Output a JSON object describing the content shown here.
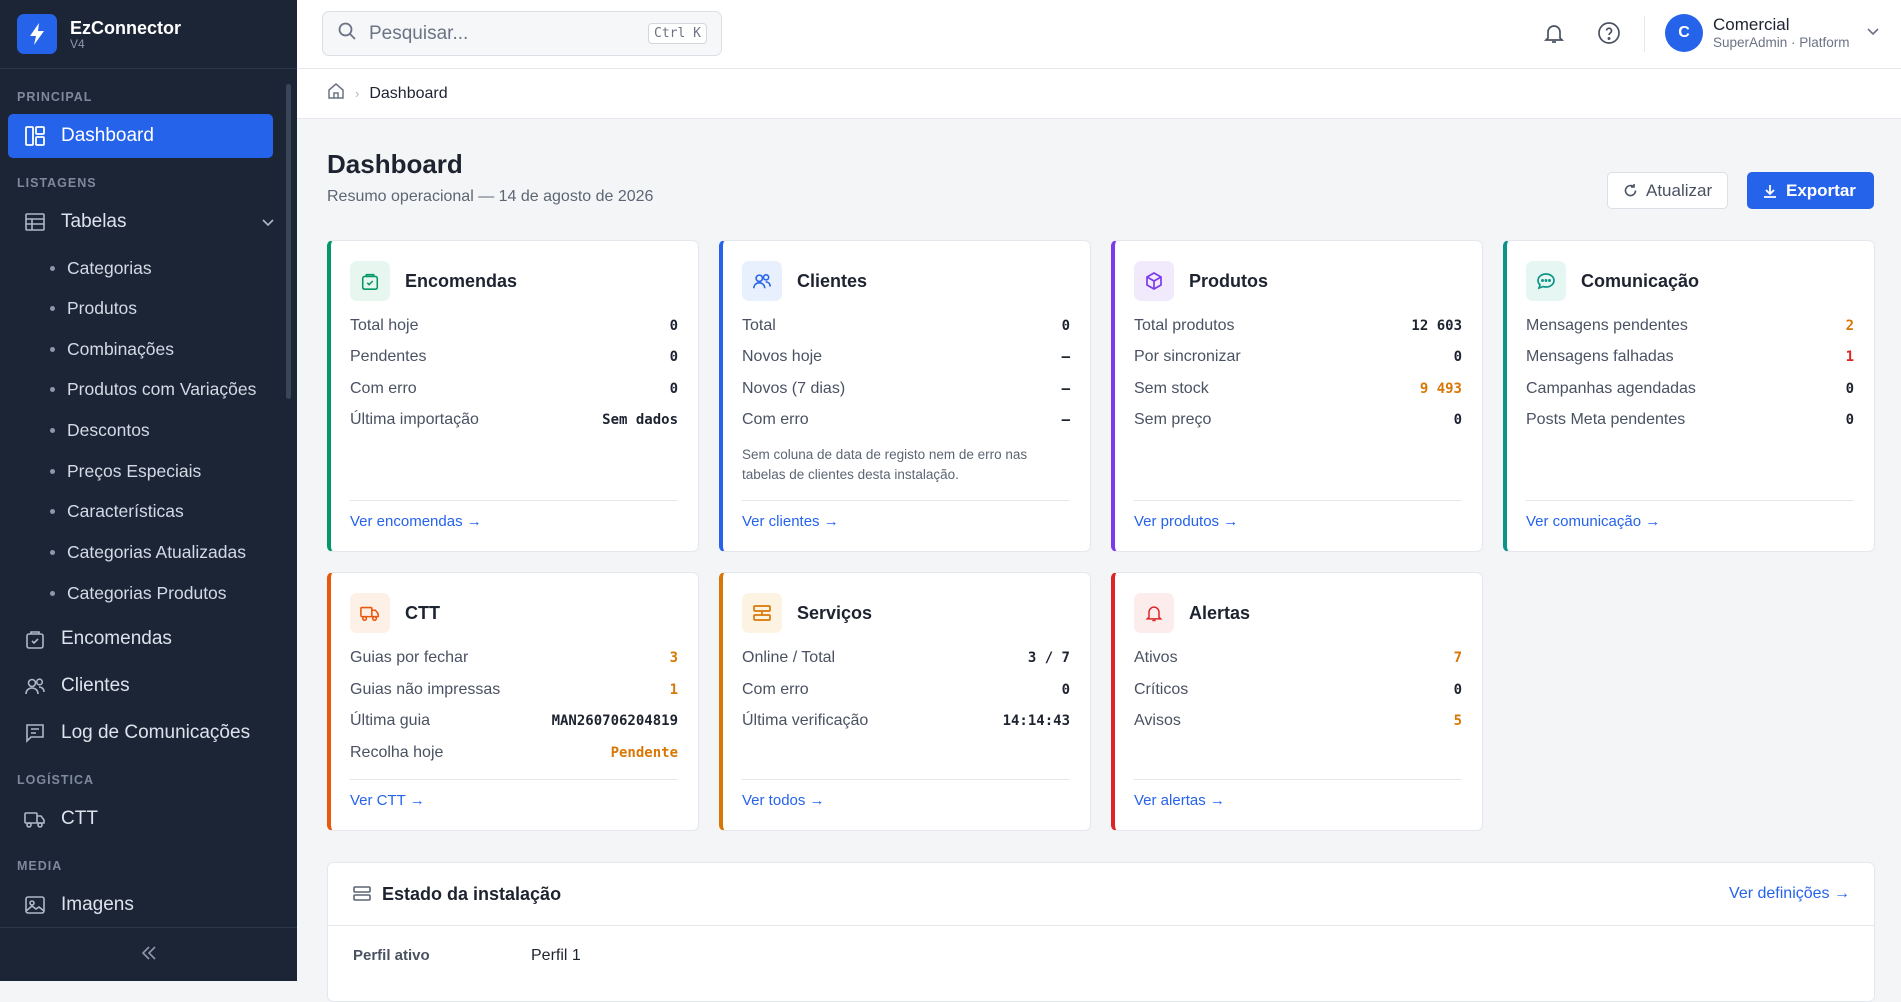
{
  "app": {
    "name": "EzConnector",
    "version": "V4"
  },
  "sidebar": {
    "sections": {
      "principal": "PRINCIPAL",
      "listagens": "LISTAGENS",
      "logistica": "LOGÍSTICA",
      "media": "MEDIA"
    },
    "dashboard": "Dashboard",
    "tabelas": "Tabelas",
    "sub": [
      "Categorias",
      "Produtos",
      "Combinações",
      "Produtos com Variações",
      "Descontos",
      "Preços Especiais",
      "Características",
      "Categorias Atualizadas",
      "Categorias Produtos"
    ],
    "encomendas": "Encomendas",
    "clientes": "Clientes",
    "log": "Log de Comunicações",
    "ctt": "CTT",
    "imagens": "Imagens"
  },
  "search": {
    "placeholder": "Pesquisar...",
    "shortcut": "Ctrl K"
  },
  "user": {
    "initial": "C",
    "name": "Comercial",
    "role": "SuperAdmin · Platform"
  },
  "breadcrumb": {
    "current": "Dashboard"
  },
  "page": {
    "title": "Dashboard",
    "subtitle": "Resumo operacional — 14 de agosto de 2026",
    "refresh": "Atualizar",
    "export": "Exportar"
  },
  "cards": {
    "encomendas": {
      "title": "Encomendas",
      "rows": [
        [
          "Total hoje",
          "0"
        ],
        [
          "Pendentes",
          "0"
        ],
        [
          "Com erro",
          "0"
        ],
        [
          "Última importação",
          "Sem dados"
        ]
      ],
      "link": "Ver encomendas →"
    },
    "clientes": {
      "title": "Clientes",
      "rows": [
        [
          "Total",
          "0"
        ],
        [
          "Novos hoje",
          "–"
        ],
        [
          "Novos (7 dias)",
          "–"
        ],
        [
          "Com erro",
          "–"
        ]
      ],
      "note": "Sem coluna de data de registo nem de erro nas tabelas de clientes desta instalação.",
      "link": "Ver clientes →"
    },
    "produtos": {
      "title": "Produtos",
      "rows": [
        [
          "Total produtos",
          "12 603"
        ],
        [
          "Por sincronizar",
          "0"
        ],
        [
          "Sem stock",
          "9 493"
        ],
        [
          "Sem preço",
          "0"
        ]
      ],
      "link": "Ver produtos →"
    },
    "comunicacao": {
      "title": "Comunicação",
      "rows": [
        [
          "Mensagens pendentes",
          "2"
        ],
        [
          "Mensagens falhadas",
          "1"
        ],
        [
          "Campanhas agendadas",
          "0"
        ],
        [
          "Posts Meta pendentes",
          "0"
        ]
      ],
      "link": "Ver comunicação →"
    },
    "ctt": {
      "title": "CTT",
      "rows": [
        [
          "Guias por fechar",
          "3"
        ],
        [
          "Guias não impressas",
          "1"
        ],
        [
          "Última guia",
          "MAN260706204819"
        ],
        [
          "Recolha hoje",
          "Pendente"
        ]
      ],
      "link": "Ver CTT →"
    },
    "servicos": {
      "title": "Serviços",
      "rows": [
        [
          "Online / Total",
          "3 / 7"
        ],
        [
          "Com erro",
          "0"
        ],
        [
          "Última verificação",
          "14:14:43"
        ]
      ],
      "link": "Ver todos →"
    },
    "alertas": {
      "title": "Alertas",
      "rows": [
        [
          "Ativos",
          "7"
        ],
        [
          "Críticos",
          "0"
        ],
        [
          "Avisos",
          "5"
        ]
      ],
      "link": "Ver alertas →"
    }
  },
  "install": {
    "title": "Estado da instalação",
    "link": "Ver definições →",
    "label": "Perfil ativo",
    "value": "Perfil 1"
  },
  "colors": {
    "sidebar": "#1b2536",
    "accent": "#2563eb",
    "green": "#059669",
    "purple": "#7c3aed",
    "orange": "#ea580c",
    "amber": "#d97706",
    "red": "#dc2626"
  }
}
